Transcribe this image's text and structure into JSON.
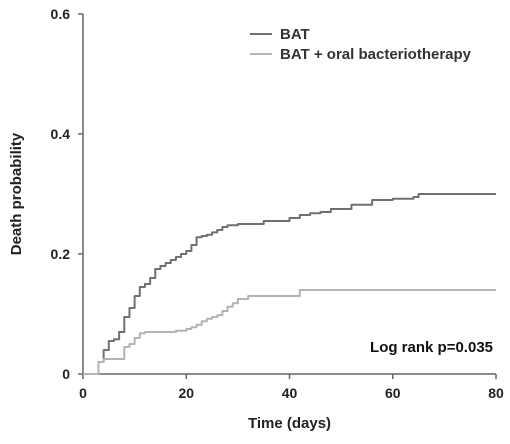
{
  "chart_data": {
    "type": "line",
    "title": "",
    "xlabel": "Time (days)",
    "ylabel": "Death probability",
    "xlim": [
      0,
      80
    ],
    "ylim": [
      0,
      0.6
    ],
    "x_ticks": [
      "0",
      "20",
      "40",
      "60",
      "80"
    ],
    "y_ticks": [
      "0",
      "0.2",
      "0.4",
      "0.6"
    ],
    "grid": false,
    "legend_position": "top-right",
    "annotation": "Log rank p=0.035",
    "series": [
      {
        "name": "BAT",
        "color": "#707070",
        "x": [
          0,
          2.5,
          3,
          4,
          5,
          6,
          7,
          8,
          9,
          10,
          11,
          12,
          13,
          14,
          15,
          16,
          17,
          18,
          19,
          20,
          21,
          22,
          23,
          24,
          25,
          26,
          27,
          28,
          30,
          35,
          40,
          42,
          44,
          46,
          48,
          52,
          56,
          60,
          64,
          65,
          70,
          75,
          80
        ],
        "y": [
          0,
          0,
          0.02,
          0.04,
          0.055,
          0.058,
          0.07,
          0.095,
          0.11,
          0.13,
          0.145,
          0.15,
          0.16,
          0.175,
          0.18,
          0.185,
          0.19,
          0.195,
          0.2,
          0.205,
          0.215,
          0.228,
          0.23,
          0.232,
          0.236,
          0.24,
          0.245,
          0.248,
          0.25,
          0.255,
          0.26,
          0.265,
          0.268,
          0.27,
          0.275,
          0.282,
          0.29,
          0.292,
          0.295,
          0.3,
          0.3,
          0.3,
          0.3
        ]
      },
      {
        "name": "BAT + oral bacteriotherapy",
        "color": "#b4b4b4",
        "x": [
          0,
          2,
          3,
          4,
          7,
          8,
          9,
          10,
          11,
          12,
          15,
          18,
          20,
          21,
          22,
          23,
          24,
          25,
          26,
          27,
          28,
          29,
          30,
          32,
          34,
          40,
          42,
          50,
          60,
          70,
          80
        ],
        "y": [
          0,
          0,
          0.02,
          0.025,
          0.025,
          0.045,
          0.05,
          0.06,
          0.068,
          0.07,
          0.07,
          0.072,
          0.075,
          0.078,
          0.082,
          0.088,
          0.092,
          0.095,
          0.098,
          0.105,
          0.112,
          0.118,
          0.125,
          0.13,
          0.13,
          0.13,
          0.14,
          0.14,
          0.14,
          0.14,
          0.14
        ]
      }
    ]
  }
}
